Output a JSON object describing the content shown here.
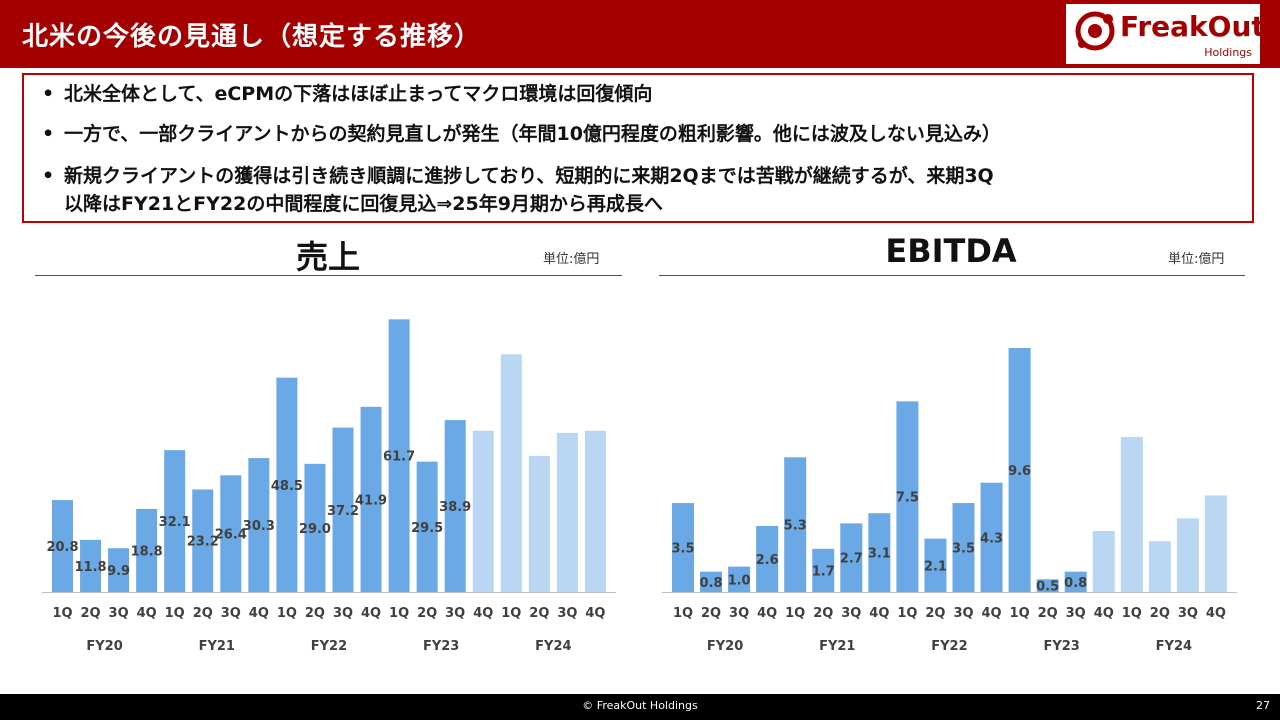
{
  "header": {
    "title": "北米の今後の見通し（想定する推移）"
  },
  "logo": {
    "wordmark": "FreakOut",
    "sub": "Holdings"
  },
  "message": {
    "bullet_glyph": "•",
    "bullets": [
      "北米全体として、eCPMの下落はほぼ止まってマクロ環境は回復傾向",
      "一方で、一部クライアントからの契約見直しが発生（年間10億円程度の粗利影響。他には波及しない見込み）",
      "新規クライアントの獲得は引き続き順調に進捗しており、短期的に来期2Qまでは苦戦が継続するが、来期3Q",
      "以降はFY21とFY22の中間程度に回復見込⇒25年9月期から再成長へ"
    ]
  },
  "colors": {
    "header": "#a40000",
    "actual": "#6aa9e6",
    "forecast": "#b9d7f2",
    "axis": "#bfbfbf"
  },
  "chart_data": [
    {
      "type": "bar",
      "title": "売上",
      "unit": "単位:億円",
      "categories": [
        "1Q",
        "2Q",
        "3Q",
        "4Q",
        "1Q",
        "2Q",
        "3Q",
        "4Q",
        "1Q",
        "2Q",
        "3Q",
        "4Q",
        "1Q",
        "2Q",
        "3Q",
        "4Q",
        "1Q",
        "2Q",
        "3Q",
        "4Q"
      ],
      "groups": [
        "FY20",
        "FY21",
        "FY22",
        "FY23",
        "FY24"
      ],
      "values": [
        20.8,
        11.8,
        9.9,
        18.8,
        32.1,
        23.2,
        26.4,
        30.3,
        48.5,
        29.0,
        37.2,
        41.9,
        61.7,
        29.5,
        38.9,
        36.5,
        53.8,
        30.8,
        36.0,
        36.5
      ],
      "labels": [
        "20.8",
        "11.8",
        "9.9",
        "18.8",
        "32.1",
        "23.2",
        "26.4",
        "30.3",
        "48.5",
        "29.0",
        "37.2",
        "41.9",
        "61.7",
        "29.5",
        "38.9",
        "",
        "",
        "",
        "",
        ""
      ],
      "forecast": [
        false,
        false,
        false,
        false,
        false,
        false,
        false,
        false,
        false,
        false,
        false,
        false,
        false,
        false,
        false,
        true,
        true,
        true,
        true,
        true
      ],
      "ylim": [
        0,
        62
      ]
    },
    {
      "type": "bar",
      "title": "EBITDA",
      "unit": "単位:億円",
      "categories": [
        "1Q",
        "2Q",
        "3Q",
        "4Q",
        "1Q",
        "2Q",
        "3Q",
        "4Q",
        "1Q",
        "2Q",
        "3Q",
        "4Q",
        "1Q",
        "2Q",
        "3Q",
        "4Q",
        "1Q",
        "2Q",
        "3Q",
        "4Q"
      ],
      "groups": [
        "FY20",
        "FY21",
        "FY22",
        "FY23",
        "FY24"
      ],
      "values": [
        3.5,
        0.8,
        1.0,
        2.6,
        5.3,
        1.7,
        2.7,
        3.1,
        7.5,
        2.1,
        3.5,
        4.3,
        9.6,
        0.5,
        0.8,
        2.4,
        6.1,
        2.0,
        2.9,
        3.8
      ],
      "labels": [
        "3.5",
        "0.8",
        "1.0",
        "2.6",
        "5.3",
        "1.7",
        "2.7",
        "3.1",
        "7.5",
        "2.1",
        "3.5",
        "4.3",
        "9.6",
        "0.5",
        "0.8",
        "",
        "",
        "",
        "",
        ""
      ],
      "forecast": [
        false,
        false,
        false,
        false,
        false,
        false,
        false,
        false,
        false,
        false,
        false,
        false,
        false,
        false,
        false,
        true,
        true,
        true,
        true,
        true
      ],
      "ylim": [
        0,
        9.6
      ]
    }
  ],
  "footer": {
    "copyright": "© FreakOut Holdings",
    "page": "27"
  }
}
